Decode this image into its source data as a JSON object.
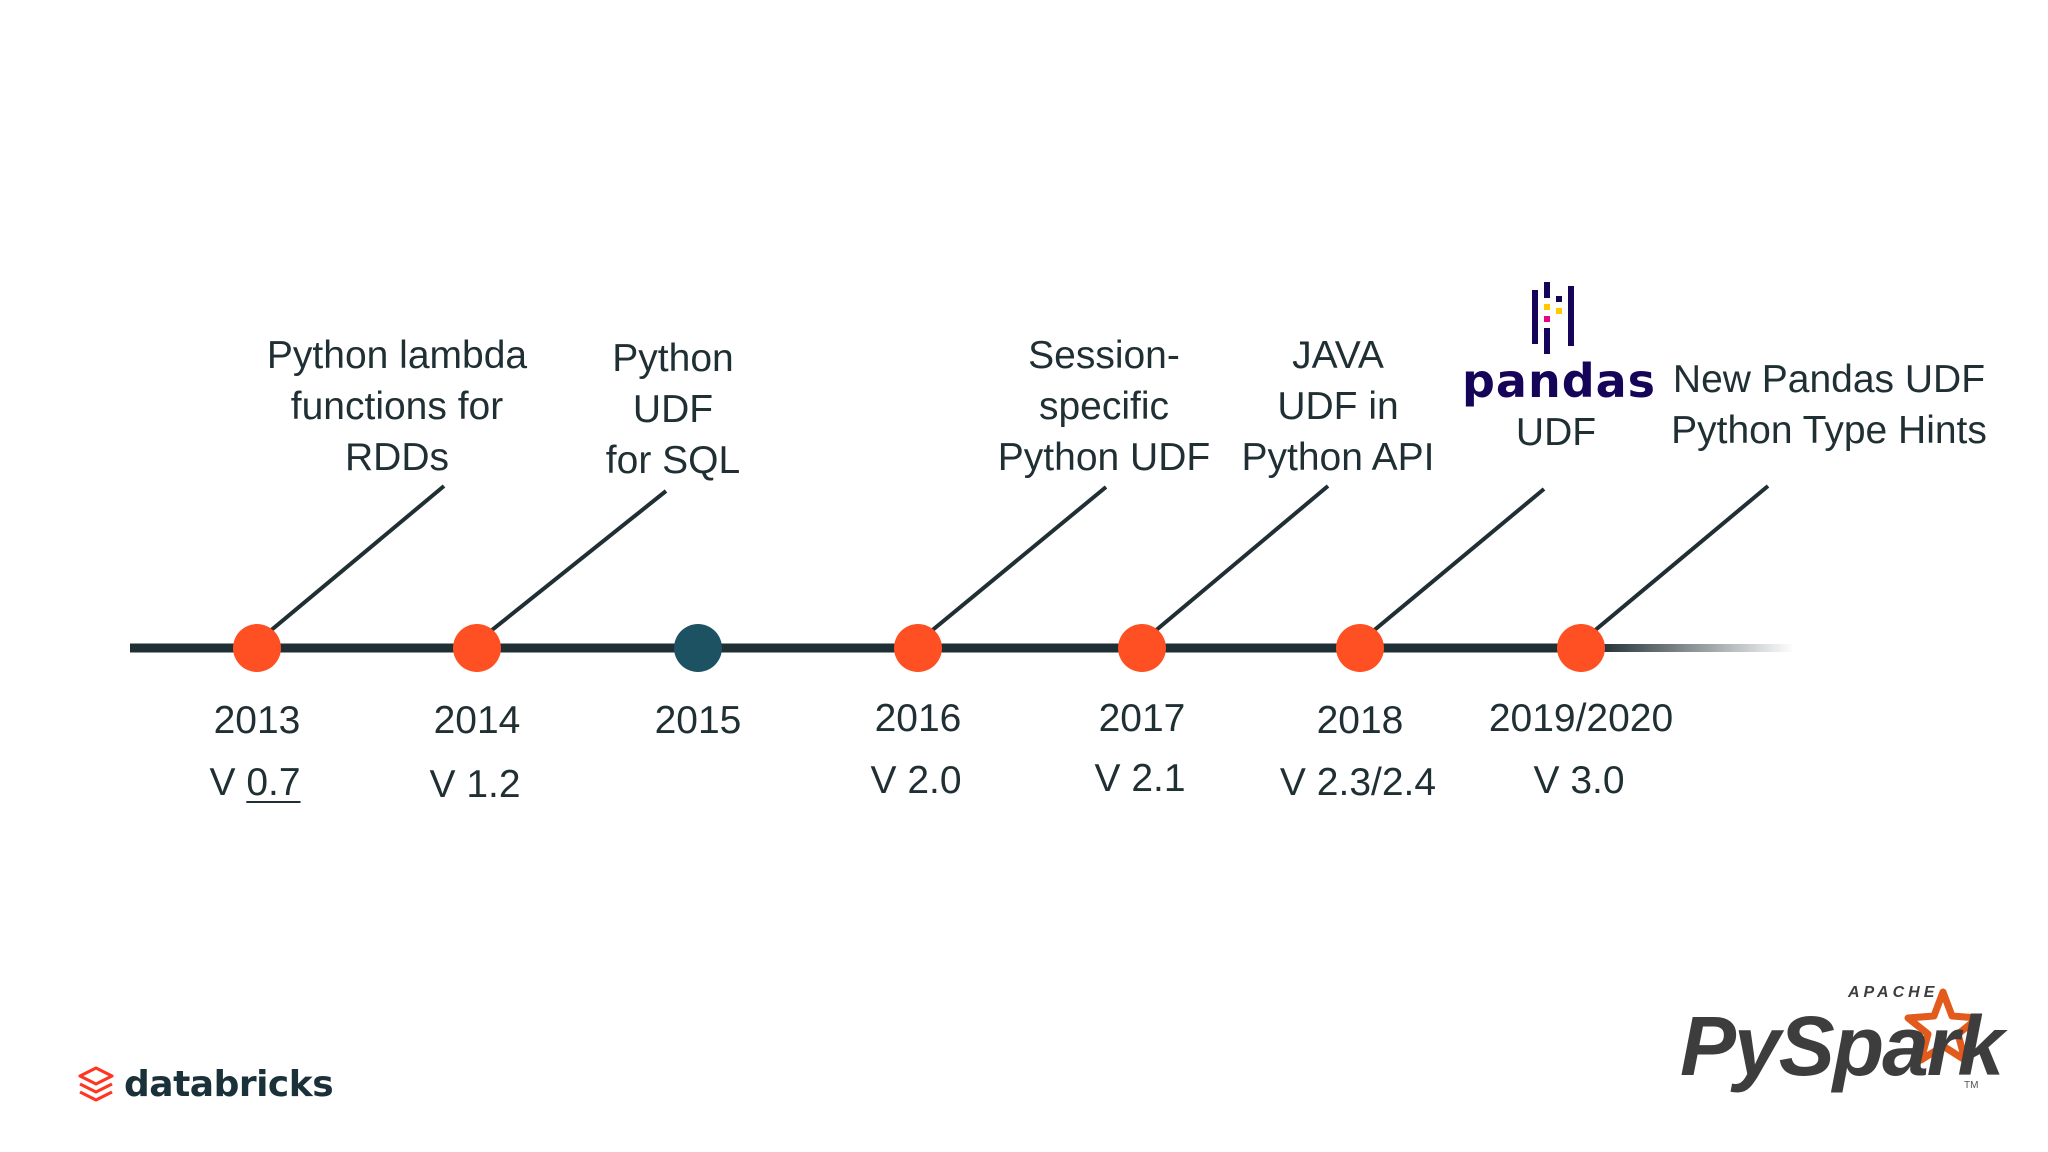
{
  "timeline": {
    "events": [
      {
        "year": "2013",
        "version_prefix": "V ",
        "version_value": "0.7",
        "label_lines": [
          "Python lambda",
          "functions for",
          "RDDs"
        ],
        "dot": "orange"
      },
      {
        "year": "2014",
        "version_prefix": "V ",
        "version_value": "1.2",
        "label_lines": [
          "Python",
          "UDF",
          "for SQL"
        ],
        "dot": "orange"
      },
      {
        "year": "2015",
        "version_prefix": "",
        "version_value": "",
        "label_lines": [],
        "dot": "teal"
      },
      {
        "year": "2016",
        "version_prefix": "V ",
        "version_value": "2.0",
        "label_lines": [
          "Session-",
          "specific",
          "Python UDF"
        ],
        "dot": "orange"
      },
      {
        "year": "2017",
        "version_prefix": "V ",
        "version_value": "2.1",
        "label_lines": [
          "JAVA",
          "UDF in",
          "Python API"
        ],
        "dot": "orange"
      },
      {
        "year": "2018",
        "version_prefix": "V ",
        "version_value": "2.3/2.4",
        "label_lines": [
          "UDF"
        ],
        "dot": "orange"
      },
      {
        "year": "2019/2020",
        "version_prefix": "V ",
        "version_value": "3.0",
        "label_lines": [
          "New Pandas UDF",
          "Python Type Hints"
        ],
        "dot": "orange"
      }
    ]
  },
  "logos": {
    "pandas": "pandas",
    "databricks": "databricks",
    "pyspark_apache": "APACHE",
    "pyspark": "PySpark",
    "pyspark_tm": "TM"
  },
  "colors": {
    "line": "#1f2f33",
    "dot_orange": "#ff5023",
    "dot_teal": "#1c5262",
    "text": "#1f2f33",
    "pandas_blue": "#150458",
    "pandas_yellow": "#ffca00",
    "pandas_pink": "#e70488",
    "databricks_red": "#ff3621",
    "spark_orange": "#e25a1c"
  }
}
